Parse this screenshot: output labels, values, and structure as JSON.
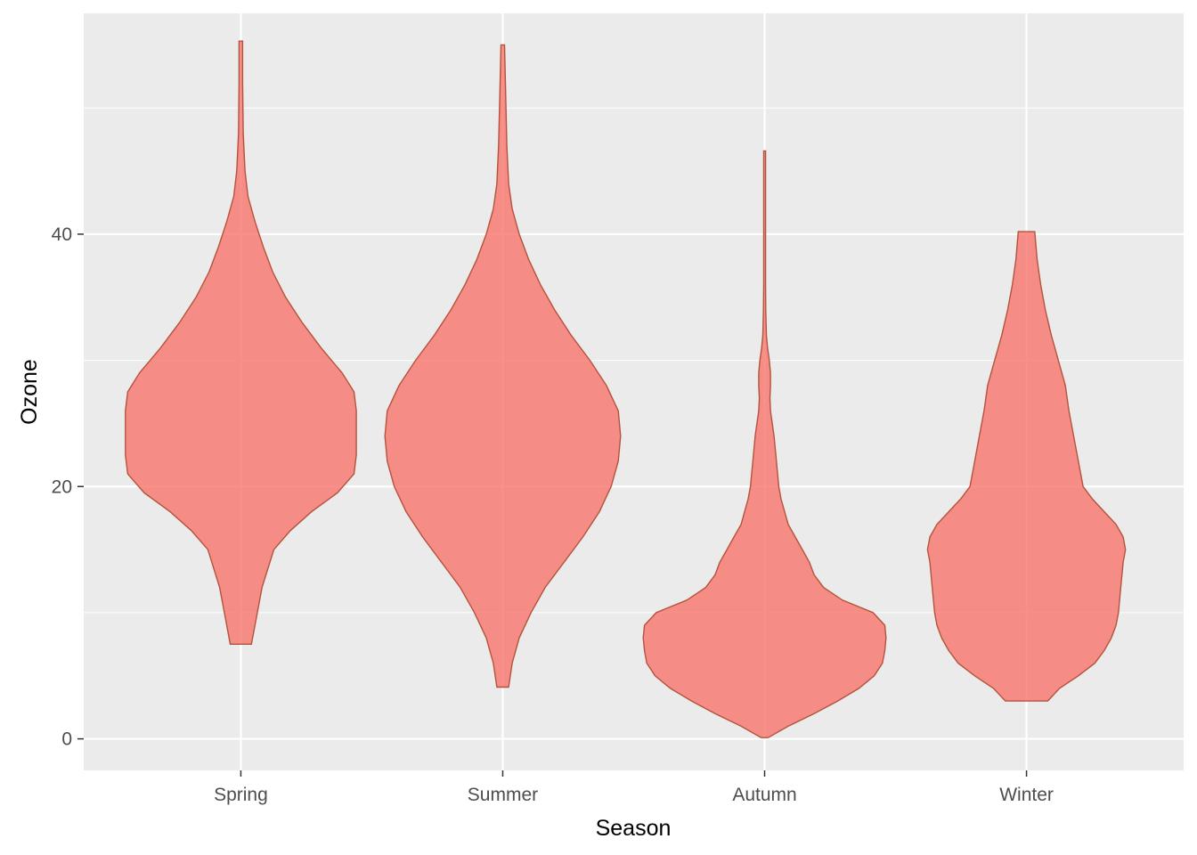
{
  "chart_data": {
    "type": "violin",
    "xlabel": "Season",
    "ylabel": "Ozone",
    "categories": [
      "Spring",
      "Summer",
      "Autumn",
      "Winter"
    ],
    "ylim": [
      -2.5,
      57.5
    ],
    "y_ticks": [
      0,
      20,
      40
    ],
    "grid": true,
    "colors": {
      "panel_background": "#ebebeb",
      "grid_major": "#ffffff",
      "grid_minor": "#f5f5f5",
      "violin_fill": "#f8766d",
      "violin_outline": "#b4533c",
      "tick_color": "#333333"
    },
    "violins": [
      {
        "category": "Spring",
        "min": 7.5,
        "max": 55.3,
        "profile": [
          [
            7.5,
            0.09
          ],
          [
            9,
            0.12
          ],
          [
            12,
            0.18
          ],
          [
            15,
            0.28
          ],
          [
            16.5,
            0.42
          ],
          [
            18,
            0.6
          ],
          [
            19.5,
            0.82
          ],
          [
            21,
            0.96
          ],
          [
            22.5,
            0.98
          ],
          [
            24.5,
            0.98
          ],
          [
            26,
            0.98
          ],
          [
            27.5,
            0.96
          ],
          [
            29,
            0.86
          ],
          [
            31,
            0.68
          ],
          [
            33,
            0.52
          ],
          [
            35,
            0.38
          ],
          [
            37,
            0.27
          ],
          [
            39,
            0.19
          ],
          [
            41,
            0.12
          ],
          [
            43,
            0.06
          ],
          [
            45,
            0.035
          ],
          [
            48,
            0.02
          ],
          [
            52,
            0.015
          ],
          [
            55.3,
            0.015
          ]
        ]
      },
      {
        "category": "Summer",
        "min": 4.1,
        "max": 55.0,
        "profile": [
          [
            4.1,
            0.05
          ],
          [
            6,
            0.08
          ],
          [
            8,
            0.14
          ],
          [
            10,
            0.24
          ],
          [
            12,
            0.36
          ],
          [
            14,
            0.52
          ],
          [
            16,
            0.68
          ],
          [
            18,
            0.82
          ],
          [
            20,
            0.92
          ],
          [
            22,
            0.98
          ],
          [
            24,
            1.0
          ],
          [
            26,
            0.98
          ],
          [
            28,
            0.88
          ],
          [
            30,
            0.74
          ],
          [
            32,
            0.58
          ],
          [
            34,
            0.44
          ],
          [
            36,
            0.32
          ],
          [
            38,
            0.22
          ],
          [
            40,
            0.14
          ],
          [
            42,
            0.08
          ],
          [
            44,
            0.05
          ],
          [
            47,
            0.035
          ],
          [
            51,
            0.025
          ],
          [
            55,
            0.015
          ]
        ]
      },
      {
        "category": "Autumn",
        "min": 0.1,
        "max": 46.6,
        "profile": [
          [
            0.1,
            0.03
          ],
          [
            1,
            0.2
          ],
          [
            2,
            0.42
          ],
          [
            3,
            0.62
          ],
          [
            4,
            0.8
          ],
          [
            5,
            0.93
          ],
          [
            6,
            1.0
          ],
          [
            7,
            1.02
          ],
          [
            8,
            1.03
          ],
          [
            9,
            1.02
          ],
          [
            10,
            0.92
          ],
          [
            11,
            0.66
          ],
          [
            12,
            0.5
          ],
          [
            13,
            0.42
          ],
          [
            14,
            0.38
          ],
          [
            15,
            0.32
          ],
          [
            16,
            0.26
          ],
          [
            17,
            0.2
          ],
          [
            18,
            0.17
          ],
          [
            19,
            0.14
          ],
          [
            20,
            0.12
          ],
          [
            22,
            0.1
          ],
          [
            24,
            0.08
          ],
          [
            26,
            0.05
          ],
          [
            27,
            0.045
          ],
          [
            28,
            0.05
          ],
          [
            29,
            0.05
          ],
          [
            30,
            0.04
          ],
          [
            31,
            0.025
          ],
          [
            32,
            0.015
          ],
          [
            34,
            0.01
          ],
          [
            36,
            0.008
          ],
          [
            38,
            0.008
          ],
          [
            40,
            0.008
          ],
          [
            44,
            0.008
          ],
          [
            46.6,
            0.008
          ]
        ]
      },
      {
        "category": "Winter",
        "min": 3.0,
        "max": 40.2,
        "profile": [
          [
            3.0,
            0.18
          ],
          [
            4,
            0.28
          ],
          [
            5,
            0.44
          ],
          [
            6,
            0.58
          ],
          [
            7,
            0.66
          ],
          [
            8,
            0.72
          ],
          [
            9,
            0.76
          ],
          [
            10,
            0.78
          ],
          [
            12,
            0.8
          ],
          [
            14,
            0.82
          ],
          [
            15,
            0.84
          ],
          [
            16,
            0.82
          ],
          [
            17,
            0.76
          ],
          [
            18,
            0.66
          ],
          [
            19,
            0.56
          ],
          [
            20,
            0.48
          ],
          [
            22,
            0.44
          ],
          [
            24,
            0.4
          ],
          [
            26,
            0.36
          ],
          [
            28,
            0.33
          ],
          [
            30,
            0.27
          ],
          [
            32,
            0.21
          ],
          [
            34,
            0.16
          ],
          [
            36,
            0.12
          ],
          [
            38,
            0.09
          ],
          [
            40.2,
            0.07
          ]
        ]
      }
    ]
  }
}
